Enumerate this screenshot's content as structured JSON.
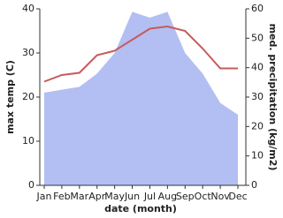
{
  "chart_data": {
    "type": "line",
    "categories": [
      "Jan",
      "Feb",
      "Mar",
      "Apr",
      "May",
      "Jun",
      "Jul",
      "Aug",
      "Sep",
      "Oct",
      "Nov",
      "Dec"
    ],
    "x_label": "date (month)",
    "y_label": "max temp (C)",
    "y2_label": "med. precipitation (kg/m2)",
    "ylim": [
      0,
      40
    ],
    "yticks": [
      0,
      10,
      20,
      30,
      40
    ],
    "y2lim": [
      0,
      60
    ],
    "y2ticks": [
      0,
      10,
      20,
      30,
      40,
      50,
      60
    ],
    "series": [
      {
        "name": "med. precipitation",
        "type": "area",
        "axis": "y2",
        "color": "#b3bff2",
        "values": [
          31.5,
          32.5,
          33.5,
          38,
          45,
          59,
          57,
          59,
          45,
          38,
          28,
          24
        ]
      },
      {
        "name": "max temp",
        "type": "line",
        "color": "#c85a5a",
        "values": [
          23.5,
          25,
          25.5,
          29.5,
          30.5,
          33,
          35.5,
          36,
          35,
          31,
          26.5,
          26.5
        ]
      }
    ]
  }
}
